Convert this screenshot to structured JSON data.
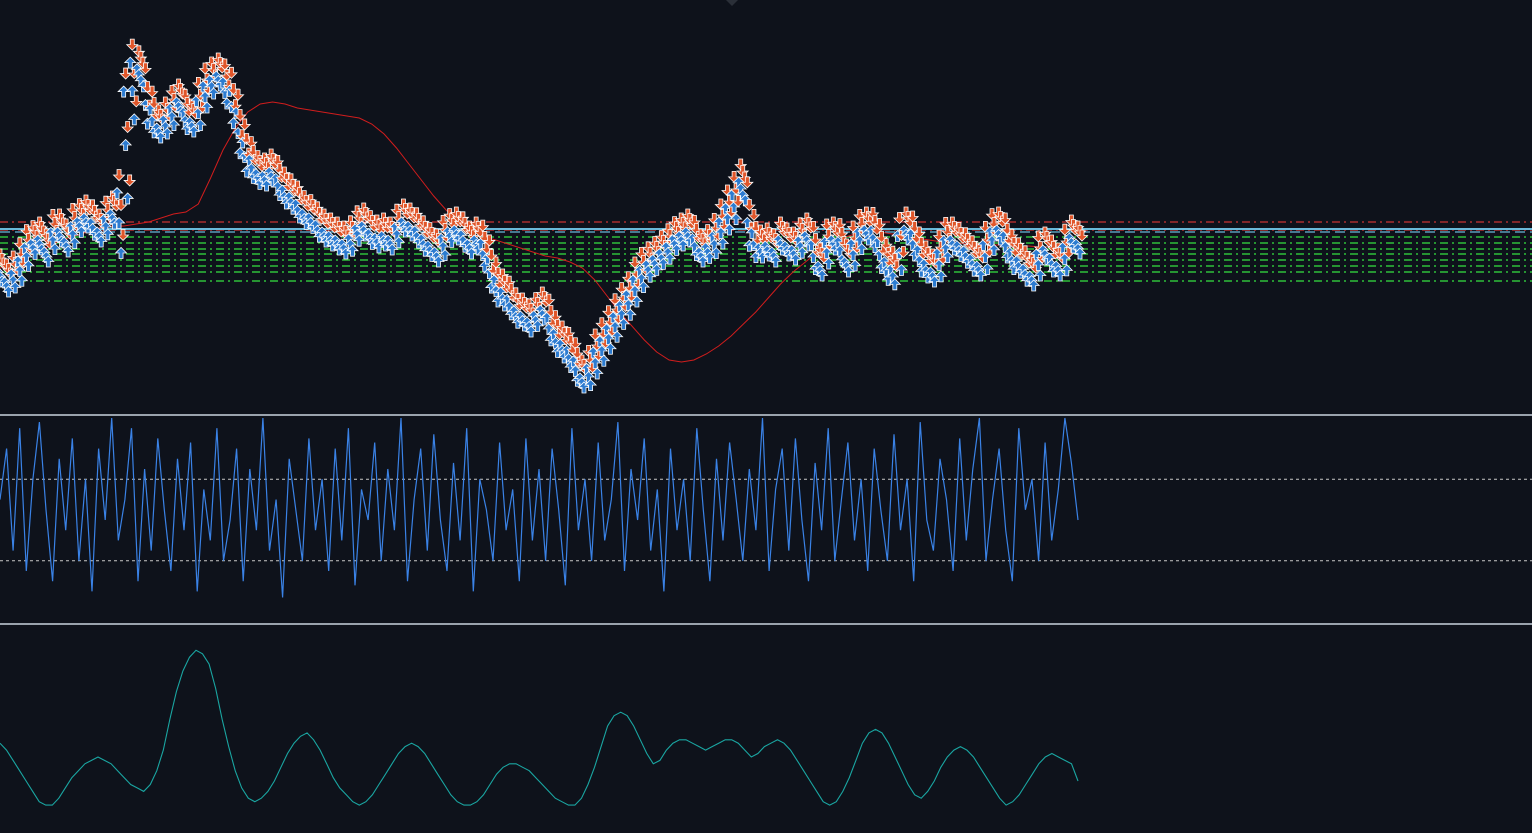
{
  "colors": {
    "background": "#0e121b",
    "pane_divider": "#9aa3ad",
    "sell_arrow": "#e0562a",
    "buy_arrow": "#2c7bd0",
    "arrow_outline": "#ffffff",
    "moving_average": "#d11d1d",
    "level_red": "#c83232",
    "level_cyan": "#69b8d8",
    "level_green": "#2fbf3a",
    "oscillator_line": "#3a82e6",
    "oscillator_ref": "#c8c8c8",
    "third_pane_line": "#1aa6a2"
  },
  "chart_data": [
    {
      "type": "line",
      "pane": "price",
      "price": [
        268,
        278,
        272,
        262,
        248,
        240,
        236,
        248,
        232,
        228,
        238,
        226,
        218,
        214,
        220,
        228,
        218,
        210,
        214,
        136,
        82,
        66,
        96,
        112,
        124,
        118,
        108,
        98,
        112,
        118,
        104,
        88,
        78,
        72,
        84,
        98,
        124,
        148,
        160,
        170,
        172,
        168,
        178,
        188,
        194,
        202,
        210,
        214,
        222,
        228,
        232,
        236,
        240,
        236,
        226,
        222,
        230,
        234,
        232,
        236,
        226,
        218,
        222,
        228,
        236,
        242,
        248,
        238,
        228,
        226,
        232,
        240,
        236,
        246,
        264,
        282,
        290,
        298,
        308,
        312,
        318,
        312,
        306,
        320,
        334,
        342,
        350,
        362,
        374,
        368,
        354,
        342,
        330,
        318,
        306,
        296,
        282,
        270,
        262,
        256,
        250,
        244,
        236,
        232,
        228,
        238,
        248,
        244,
        236,
        224,
        210,
        198,
        180,
        214,
        236,
        244,
        242,
        248,
        236,
        242,
        246,
        238,
        232,
        248,
        262,
        244,
        236,
        242,
        258,
        246,
        232,
        226,
        230,
        246,
        262,
        268,
        244,
        226,
        236,
        252,
        262,
        268,
        256,
        240,
        236,
        242,
        248,
        256,
        262,
        248,
        232,
        226,
        238,
        252,
        258,
        266,
        272,
        256,
        246,
        256,
        262,
        250,
        234,
        240
      ],
      "moving_average": [
        268,
        264,
        258,
        252,
        246,
        240,
        236,
        232,
        228,
        226,
        226,
        224,
        222,
        218,
        214,
        212,
        204,
        178,
        150,
        128,
        112,
        104,
        102,
        104,
        108,
        110,
        112,
        114,
        116,
        118,
        124,
        134,
        148,
        164,
        180,
        196,
        210,
        222,
        230,
        236,
        240,
        244,
        248,
        252,
        256,
        258,
        262,
        268,
        280,
        296,
        312,
        326,
        340,
        352,
        360,
        362,
        360,
        354,
        346,
        336,
        324,
        312,
        298,
        284,
        272,
        262,
        252,
        244,
        238,
        234,
        232,
        232,
        234,
        236,
        238,
        240,
        242,
        242,
        244,
        244,
        245,
        245,
        246,
        246,
        247,
        247,
        248,
        248
      ],
      "levels_red": [
        222,
        230
      ],
      "levels_cyan": [
        229,
        232
      ],
      "levels_green": [
        237,
        243,
        249,
        254,
        260,
        266,
        272,
        281
      ]
    },
    {
      "type": "line",
      "pane": "oscillator",
      "ylim": [
        0,
        100
      ],
      "reference_levels": [
        70,
        30
      ],
      "values": [
        60,
        85,
        35,
        95,
        25,
        70,
        98,
        55,
        20,
        80,
        45,
        90,
        30,
        70,
        15,
        85,
        50,
        100,
        40,
        60,
        95,
        20,
        75,
        35,
        90,
        55,
        25,
        80,
        45,
        88,
        15,
        65,
        40,
        95,
        30,
        50,
        85,
        20,
        75,
        45,
        100,
        35,
        60,
        12,
        80,
        55,
        30,
        90,
        45,
        70,
        25,
        85,
        40,
        95,
        18,
        65,
        50,
        88,
        30,
        75,
        45,
        100,
        20,
        60,
        85,
        35,
        92,
        50,
        25,
        78,
        40,
        95,
        15,
        70,
        55,
        30,
        88,
        45,
        65,
        20,
        90,
        40,
        75,
        30,
        85,
        55,
        18,
        95,
        45,
        70,
        30,
        88,
        40,
        60,
        98,
        25,
        75,
        50,
        90,
        35,
        65,
        15,
        85,
        45,
        70,
        30,
        95,
        55,
        20,
        80,
        40,
        88,
        60,
        30,
        75,
        45,
        100,
        25,
        65,
        85,
        35,
        90,
        50,
        20,
        78,
        45,
        95,
        30,
        60,
        88,
        40,
        70,
        25,
        85,
        55,
        30,
        92,
        45,
        70,
        20,
        98,
        50,
        35,
        80,
        60,
        25,
        90,
        40,
        75,
        100,
        30,
        60,
        85,
        45,
        20,
        95,
        55,
        70,
        30,
        88,
        40,
        65,
        100,
        78,
        50
      ]
    },
    {
      "type": "line",
      "pane": "lower",
      "values": [
        40,
        36,
        30,
        24,
        18,
        12,
        6,
        4,
        4,
        8,
        14,
        20,
        24,
        28,
        30,
        32,
        30,
        28,
        24,
        20,
        16,
        14,
        12,
        16,
        24,
        36,
        54,
        70,
        82,
        90,
        94,
        92,
        86,
        72,
        54,
        38,
        24,
        14,
        8,
        6,
        8,
        12,
        18,
        26,
        34,
        40,
        44,
        46,
        42,
        36,
        28,
        20,
        14,
        10,
        6,
        4,
        6,
        10,
        16,
        22,
        28,
        34,
        38,
        40,
        38,
        34,
        28,
        22,
        16,
        10,
        6,
        4,
        4,
        6,
        10,
        16,
        22,
        26,
        28,
        28,
        26,
        24,
        20,
        16,
        12,
        8,
        6,
        4,
        4,
        8,
        16,
        26,
        38,
        50,
        56,
        58,
        56,
        50,
        42,
        34,
        28,
        30,
        36,
        40,
        42,
        42,
        40,
        38,
        36,
        38,
        40,
        42,
        42,
        40,
        36,
        32,
        34,
        38,
        40,
        42,
        40,
        36,
        30,
        24,
        18,
        12,
        6,
        4,
        6,
        12,
        20,
        30,
        40,
        46,
        48,
        46,
        40,
        32,
        24,
        16,
        10,
        8,
        12,
        18,
        26,
        32,
        36,
        38,
        36,
        32,
        26,
        20,
        14,
        8,
        4,
        6,
        10,
        16,
        22,
        28,
        32,
        34,
        32,
        30,
        28,
        18
      ]
    }
  ]
}
